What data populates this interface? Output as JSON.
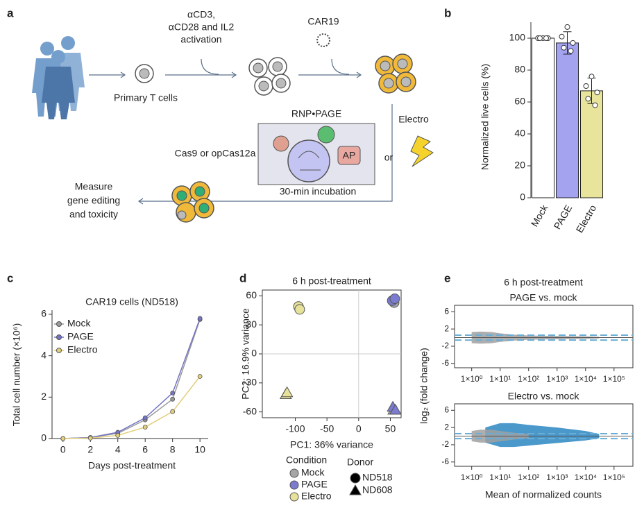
{
  "diagram": {
    "label": "a",
    "texts": {
      "activation1": "αCD3,",
      "activation2": "αCD28 and IL2",
      "activation3": "activation",
      "car": "CAR19",
      "primary": "Primary T cells",
      "rnp": "RNP•PAGE",
      "electro": "Electro",
      "or": "or",
      "cas": "Cas9 or opCas12a",
      "ap": "AP",
      "incubation": "30-min incubation",
      "measure1": "Measure",
      "measure2": "gene editing",
      "measure3": "and toxicity"
    }
  },
  "chart_data": [
    {
      "type": "bar",
      "label": "b",
      "ylabel": "Normalized live cells (%)",
      "categories": [
        "Mock",
        "PAGE",
        "Electro"
      ],
      "values": [
        100,
        97,
        67
      ],
      "errors": [
        1,
        7,
        8
      ],
      "colors": [
        "#ffffff",
        "#a3a3f0",
        "#e8e49c"
      ],
      "points": [
        [
          100,
          100,
          100,
          100,
          100
        ],
        [
          107,
          101,
          97,
          94,
          92
        ],
        [
          76,
          70,
          66,
          62,
          58
        ]
      ],
      "ylim": [
        0,
        110
      ],
      "yticks": [
        0,
        20,
        40,
        60,
        80,
        100
      ]
    },
    {
      "type": "line",
      "label": "c",
      "title": "CAR19 cells (ND518)",
      "xlabel": "Days post-treatment",
      "ylabel": "Total cell number (×10⁶)",
      "x": [
        0,
        2,
        4,
        6,
        8,
        10
      ],
      "series": [
        {
          "name": "Mock",
          "color": "#9a9a9a",
          "values": [
            0,
            0.05,
            0.25,
            0.9,
            1.9,
            5.75
          ]
        },
        {
          "name": "PAGE",
          "color": "#7474c4",
          "values": [
            0,
            0.05,
            0.3,
            1.0,
            2.2,
            5.8
          ]
        },
        {
          "name": "Electro",
          "color": "#e2cf7c",
          "values": [
            0,
            0.02,
            0.15,
            0.55,
            1.3,
            3.0
          ]
        }
      ],
      "xlim": [
        -0.8,
        10.6
      ],
      "ylim": [
        0,
        6.2
      ],
      "xticks": [
        0,
        2,
        4,
        6,
        8,
        10
      ],
      "yticks": [
        0,
        2,
        4,
        6
      ],
      "legend": "upper left"
    },
    {
      "type": "scatter",
      "label": "d",
      "title": "6 h post-treatment",
      "xlabel": "PC1: 36% variance",
      "ylabel": "PC2: 16.9% variance",
      "series": [
        {
          "name": "Mock",
          "color": "#a6a6a6",
          "x": [
            56,
            55
          ],
          "y": [
            53,
            -58
          ],
          "marker": [
            "circle",
            "triangle"
          ]
        },
        {
          "name": "PAGE",
          "color": "#7b7bd0",
          "x": [
            53,
            57,
            54,
            58
          ],
          "y": [
            55,
            57,
            -55,
            -58
          ],
          "marker": [
            "circle",
            "circle",
            "triangle",
            "triangle"
          ]
        },
        {
          "name": "Electro",
          "color": "#e6e29a",
          "x": [
            -95,
            -93,
            -115,
            -113
          ],
          "y": [
            49,
            46,
            -42,
            -40
          ],
          "marker": [
            "circle",
            "circle",
            "triangle",
            "triangle"
          ]
        }
      ],
      "legend_title": "Condition",
      "donor_title": "Donor",
      "donors": [
        {
          "name": "ND518",
          "marker": "circle"
        },
        {
          "name": "ND608",
          "marker": "triangle"
        }
      ],
      "xlim": [
        -152,
        67
      ],
      "ylim": [
        -66,
        66
      ],
      "xticks": [
        -100,
        -50,
        0,
        50
      ],
      "yticks": [
        -60,
        -30,
        0,
        30,
        60
      ]
    },
    {
      "type": "ma_band",
      "label": "e",
      "title": "6 h post-treatment",
      "subtitle": "PAGE vs. mock",
      "ylabel": "log₂ (fold change)",
      "log_x": true,
      "series": [
        {
          "color": "#a0a0a0",
          "x": [
            1,
            2,
            5,
            10,
            30,
            100,
            1000,
            10000,
            30000
          ],
          "upper": [
            1.3,
            1.4,
            1.3,
            1.0,
            0.7,
            0.5,
            0.4,
            0.3,
            0.2
          ],
          "lower": [
            -1.3,
            -1.4,
            -1.3,
            -1.0,
            -0.7,
            -0.5,
            -0.4,
            -0.3,
            -0.2
          ]
        }
      ],
      "thresholds": [
        -0.58,
        0.58
      ],
      "xlim": [
        0.25,
        460000
      ],
      "ylim": [
        -7,
        7.5
      ],
      "xticks": [
        {
          "value": 1,
          "label": "1×10⁰"
        },
        {
          "value": 10,
          "label": "1×10¹"
        },
        {
          "value": 100,
          "label": "1×10²"
        },
        {
          "value": 1000,
          "label": "1×10³"
        },
        {
          "value": 10000,
          "label": "1×10⁴"
        },
        {
          "value": 100000,
          "label": "1×10⁵"
        }
      ],
      "yticks": [
        -6,
        -2,
        2,
        6
      ]
    },
    {
      "type": "ma_band",
      "subtitle": "Electro vs. mock",
      "xlabel": "Mean of normalized counts",
      "log_x": true,
      "series": [
        {
          "color": "#2b86c2",
          "x": [
            3,
            10,
            30,
            100,
            1000,
            10000,
            30000
          ],
          "upper": [
            2,
            3,
            3,
            2.6,
            2.0,
            1.2,
            0.5
          ],
          "lower": [
            -1.5,
            -2.5,
            -2.5,
            -2.2,
            -1.6,
            -1.0,
            -0.5
          ]
        },
        {
          "color": "#a0a0a0",
          "x": [
            1,
            2,
            5,
            10,
            30,
            100
          ],
          "upper": [
            1.2,
            1.5,
            1.5,
            1.2,
            0.8,
            0.5
          ],
          "lower": [
            -1.2,
            -1.5,
            -1.5,
            -1.2,
            -0.8,
            -0.5
          ]
        }
      ],
      "thresholds": [
        -0.58,
        0.58
      ],
      "xlim": [
        0.25,
        460000
      ],
      "ylim": [
        -7,
        7.5
      ],
      "xticks": [
        {
          "value": 1,
          "label": "1×10⁰"
        },
        {
          "value": 10,
          "label": "1×10¹"
        },
        {
          "value": 100,
          "label": "1×10²"
        },
        {
          "value": 1000,
          "label": "1×10³"
        },
        {
          "value": 10000,
          "label": "1×10⁴"
        },
        {
          "value": 100000,
          "label": "1×10⁵"
        }
      ],
      "yticks": [
        -6,
        -2,
        2,
        6
      ]
    }
  ]
}
